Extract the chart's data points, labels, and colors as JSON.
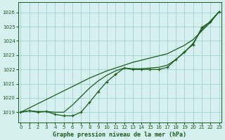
{
  "title": "Graphe pression niveau de la mer (hPa)",
  "bg_color": "#d6f0f0",
  "grid_color": "#99cccc",
  "line_color": "#1a5c1a",
  "x_ticks": [
    0,
    1,
    2,
    3,
    4,
    5,
    6,
    7,
    8,
    9,
    10,
    11,
    12,
    13,
    14,
    15,
    16,
    17,
    18,
    19,
    20,
    21,
    22,
    23
  ],
  "y_ticks": [
    1019,
    1020,
    1021,
    1022,
    1023,
    1024,
    1025,
    1026
  ],
  "xlim": [
    -0.3,
    23.3
  ],
  "ylim": [
    1018.3,
    1026.7
  ],
  "series_straight": [
    1019.0,
    1019.3,
    1019.6,
    1019.9,
    1020.2,
    1020.5,
    1020.8,
    1021.1,
    1021.4,
    1021.65,
    1021.9,
    1022.1,
    1022.3,
    1022.5,
    1022.65,
    1022.8,
    1022.95,
    1023.1,
    1023.4,
    1023.7,
    1024.1,
    1024.7,
    1025.3,
    1026.05
  ],
  "series_smooth": [
    1019.0,
    1019.1,
    1019.05,
    1019.05,
    1019.0,
    1019.0,
    1019.5,
    1020.1,
    1020.7,
    1021.2,
    1021.6,
    1021.9,
    1022.1,
    1022.05,
    1022.05,
    1022.1,
    1022.15,
    1022.3,
    1022.7,
    1023.2,
    1023.85,
    1024.8,
    1025.4,
    1026.05
  ],
  "series_markers": [
    1019.0,
    1019.1,
    1019.0,
    1019.05,
    1018.85,
    1018.75,
    1018.75,
    1019.0,
    1019.7,
    1020.45,
    1021.15,
    1021.65,
    1022.1,
    1022.0,
    1022.0,
    1022.0,
    1022.0,
    1022.15,
    1022.7,
    1023.25,
    1023.75,
    1024.95,
    1025.35,
    1026.05
  ]
}
